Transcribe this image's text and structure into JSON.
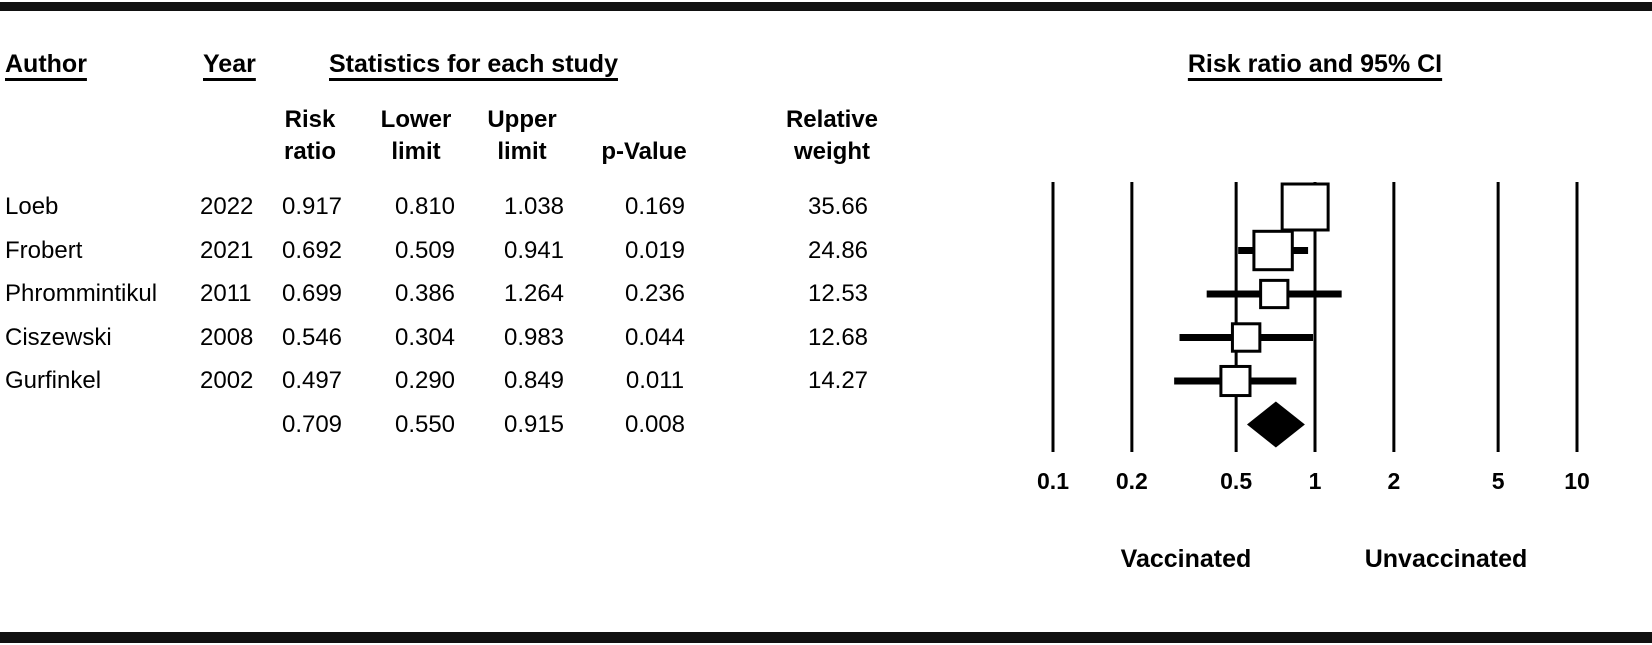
{
  "header": {
    "author_label": "Author",
    "year_label": "Year",
    "statistics_label": "Statistics for each study",
    "plot_title": "Risk ratio and 95% CI"
  },
  "columns": {
    "risk_ratio": [
      "Risk",
      "ratio"
    ],
    "lower": [
      "Lower",
      "limit"
    ],
    "upper": [
      "Upper",
      "limit"
    ],
    "p_value": "p-Value",
    "weight": [
      "Relative",
      "weight"
    ]
  },
  "chart_data": {
    "type": "forest_plot",
    "x_scale": "log10",
    "x_ticks": [
      "0.1",
      "0.2",
      "0.5",
      "1",
      "2",
      "5",
      "10"
    ],
    "x_range": [
      0.1,
      10
    ],
    "footer_left": "Vaccinated",
    "footer_right": "Unvaccinated",
    "studies": [
      {
        "author": "Loeb",
        "year": "2022",
        "risk_ratio": "0.917",
        "lower": "0.810",
        "upper": "1.038",
        "p_value": "0.169",
        "weight": "35.66"
      },
      {
        "author": "Frobert",
        "year": "2021",
        "risk_ratio": "0.692",
        "lower": "0.509",
        "upper": "0.941",
        "p_value": "0.019",
        "weight": "24.86"
      },
      {
        "author": "Phrommintikul",
        "year": "2011",
        "risk_ratio": "0.699",
        "lower": "0.386",
        "upper": "1.264",
        "p_value": "0.236",
        "weight": "12.53"
      },
      {
        "author": "Ciszewski",
        "year": "2008",
        "risk_ratio": "0.546",
        "lower": "0.304",
        "upper": "0.983",
        "p_value": "0.044",
        "weight": "12.68"
      },
      {
        "author": "Gurfinkel",
        "year": "2002",
        "risk_ratio": "0.497",
        "lower": "0.290",
        "upper": "0.849",
        "p_value": "0.011",
        "weight": "14.27"
      }
    ],
    "summary": {
      "risk_ratio": "0.709",
      "lower": "0.550",
      "upper": "0.915",
      "p_value": "0.008"
    }
  }
}
